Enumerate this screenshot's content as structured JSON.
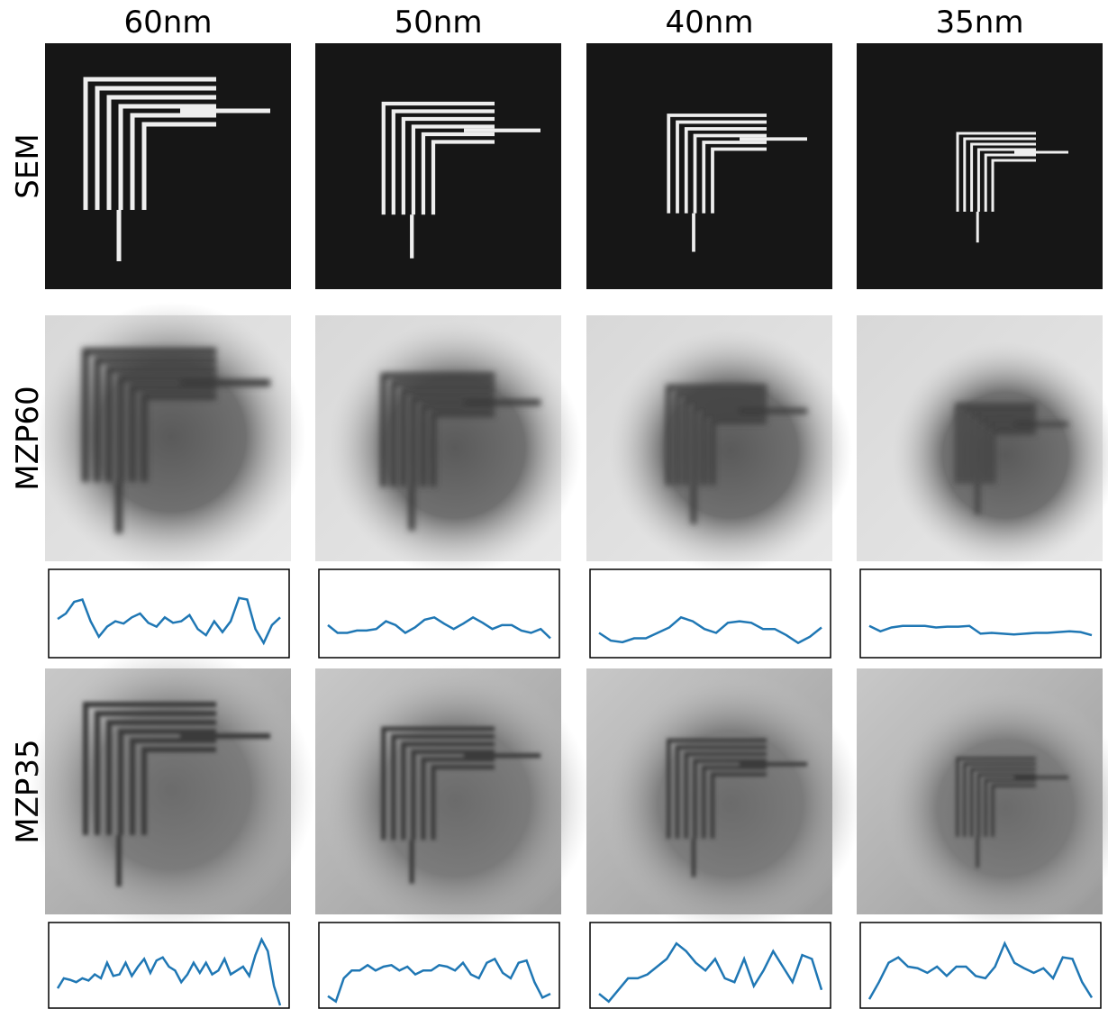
{
  "columns": [
    "60nm",
    "50nm",
    "40nm",
    "35nm"
  ],
  "rows": [
    "SEM",
    "MZP60",
    "MZP35"
  ],
  "profile_rows": [
    [
      [
        0.43,
        0.5,
        0.65,
        0.68,
        0.4,
        0.2,
        0.33,
        0.4,
        0.37,
        0.45,
        0.5,
        0.38,
        0.33,
        0.45,
        0.38,
        0.4,
        0.48,
        0.3,
        0.22,
        0.4,
        0.26,
        0.4,
        0.7,
        0.68,
        0.3,
        0.12,
        0.35,
        0.45
      ],
      [
        0.35,
        0.25,
        0.25,
        0.28,
        0.28,
        0.3,
        0.4,
        0.35,
        0.25,
        0.32,
        0.42,
        0.45,
        0.37,
        0.3,
        0.37,
        0.45,
        0.38,
        0.3,
        0.35,
        0.35,
        0.28,
        0.25,
        0.3,
        0.18
      ],
      [
        0.25,
        0.15,
        0.13,
        0.18,
        0.18,
        0.25,
        0.32,
        0.45,
        0.4,
        0.3,
        0.25,
        0.38,
        0.4,
        0.38,
        0.3,
        0.3,
        0.22,
        0.12,
        0.2,
        0.32
      ],
      [
        0.34,
        0.27,
        0.32,
        0.34,
        0.34,
        0.34,
        0.32,
        0.33,
        0.33,
        0.34,
        0.24,
        0.25,
        0.24,
        0.23,
        0.24,
        0.25,
        0.25,
        0.26,
        0.27,
        0.26,
        0.22
      ]
    ],
    [
      [
        0.22,
        0.35,
        0.33,
        0.3,
        0.35,
        0.32,
        0.4,
        0.35,
        0.55,
        0.38,
        0.4,
        0.55,
        0.38,
        0.5,
        0.6,
        0.42,
        0.58,
        0.62,
        0.5,
        0.45,
        0.3,
        0.4,
        0.55,
        0.42,
        0.55,
        0.4,
        0.45,
        0.6,
        0.4,
        0.45,
        0.5,
        0.38,
        0.65,
        0.85,
        0.7,
        0.25,
        0.0
      ],
      [
        0.12,
        0.05,
        0.35,
        0.45,
        0.45,
        0.52,
        0.45,
        0.5,
        0.52,
        0.45,
        0.5,
        0.4,
        0.45,
        0.45,
        0.52,
        0.5,
        0.45,
        0.55,
        0.4,
        0.35,
        0.55,
        0.6,
        0.42,
        0.35,
        0.55,
        0.58,
        0.3,
        0.1,
        0.15
      ],
      [
        0.15,
        0.05,
        0.2,
        0.35,
        0.35,
        0.4,
        0.5,
        0.6,
        0.8,
        0.7,
        0.55,
        0.45,
        0.6,
        0.35,
        0.3,
        0.6,
        0.25,
        0.45,
        0.7,
        0.5,
        0.3,
        0.65,
        0.6,
        0.2
      ],
      [
        0.08,
        0.3,
        0.55,
        0.62,
        0.5,
        0.48,
        0.42,
        0.5,
        0.38,
        0.5,
        0.5,
        0.38,
        0.35,
        0.5,
        0.8,
        0.55,
        0.48,
        0.42,
        0.48,
        0.35,
        0.62,
        0.6,
        0.3,
        0.1
      ]
    ]
  ]
}
